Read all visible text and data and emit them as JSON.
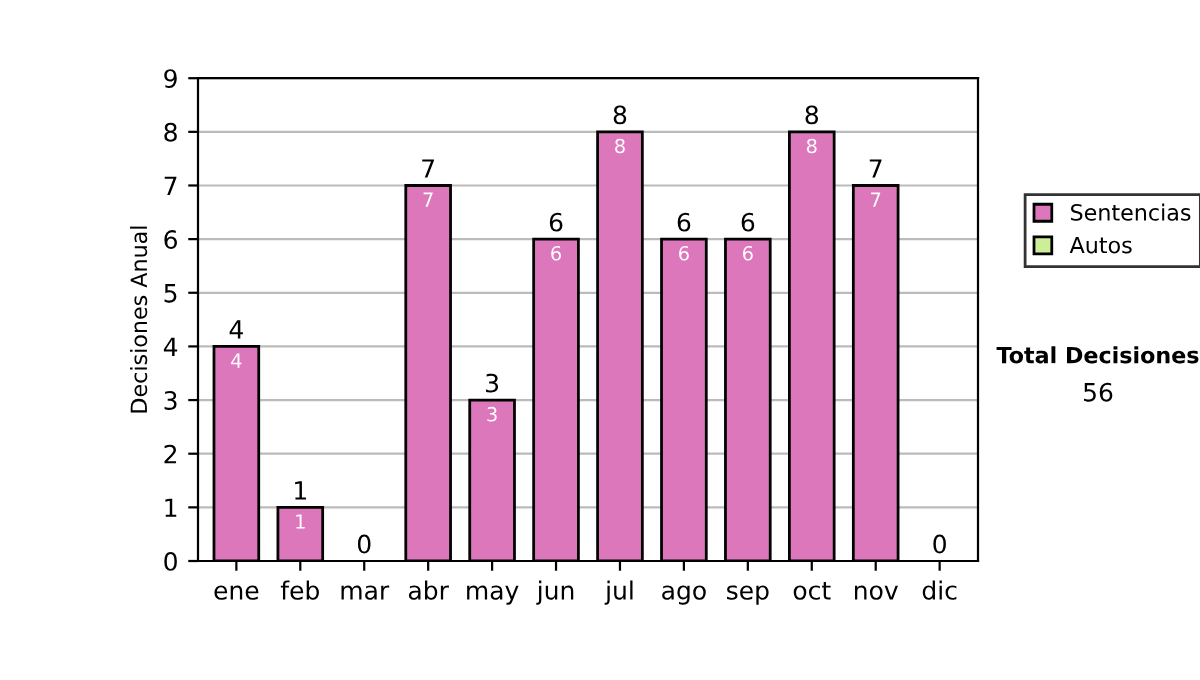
{
  "chart_data": {
    "type": "bar",
    "stacked": true,
    "ylabel": "Decisiones Anual",
    "categories": [
      "ene",
      "feb",
      "mar",
      "abr",
      "may",
      "jun",
      "jul",
      "ago",
      "sep",
      "oct",
      "nov",
      "dic"
    ],
    "series": [
      {
        "name": "Sentencias",
        "color": "#dd77bb",
        "values": [
          4,
          1,
          0,
          7,
          3,
          6,
          8,
          6,
          6,
          8,
          7,
          0
        ],
        "value_labels": [
          "4",
          "1",
          null,
          "7",
          "3",
          "6",
          "8",
          "6",
          "6",
          "8",
          "7",
          null
        ]
      },
      {
        "name": "Autos",
        "color": "#ccee99",
        "values": [
          0,
          0,
          0,
          0,
          0,
          0,
          0,
          0,
          0,
          0,
          0,
          0
        ]
      }
    ],
    "totals": [
      "4",
      "1",
      "0",
      "7",
      "3",
      "6",
      "8",
      "6",
      "6",
      "8",
      "7",
      "0"
    ],
    "ylim": [
      0,
      9
    ],
    "yticks": [
      0,
      1,
      2,
      3,
      4,
      5,
      6,
      7,
      8,
      9
    ],
    "grid": "y",
    "legend": "right",
    "annotations": [
      "Total Decisiones",
      "56"
    ]
  }
}
